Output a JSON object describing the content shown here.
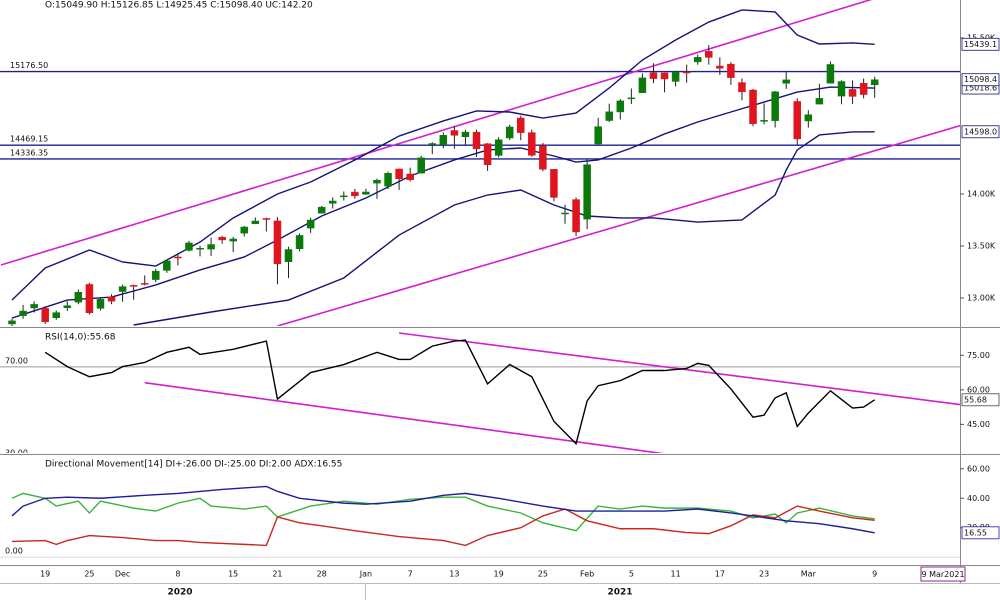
{
  "chart_data": [
    {
      "type": "candlestick",
      "title": "O:15049.90  H:15126.85  L:14925.45  C:15098.40  UC:142.20",
      "categories": [
        null,
        null,
        null,
        "19",
        null,
        null,
        null,
        "25",
        null,
        null,
        "Dec",
        null,
        null,
        null,
        null,
        "8",
        null,
        null,
        null,
        null,
        "15",
        null,
        null,
        null,
        "21",
        null,
        null,
        null,
        "28",
        null,
        null,
        null,
        "Jan",
        null,
        null,
        null,
        "7",
        null,
        null,
        null,
        "13",
        null,
        null,
        null,
        "19",
        null,
        null,
        null,
        "25",
        null,
        null,
        null,
        "Feb",
        null,
        null,
        null,
        "5",
        null,
        null,
        null,
        "11",
        null,
        null,
        null,
        "17",
        null,
        null,
        null,
        "23",
        null,
        null,
        null,
        "Mar",
        null,
        null,
        null,
        null,
        null,
        "9"
      ],
      "open": [
        12750,
        12830,
        12904,
        12900,
        12810,
        12906,
        12960,
        13130,
        12900,
        13010,
        13062,
        13121,
        13140,
        13177,
        13265,
        13394,
        13458,
        13473,
        13470,
        13584,
        13547,
        13623,
        13713,
        13764,
        13741,
        13348,
        13473,
        13672,
        13815,
        13910,
        13981,
        14018,
        13997,
        14104,
        14075,
        14240,
        14192,
        14200,
        14474,
        14473,
        14610,
        14550,
        14594,
        14483,
        14371,
        14538,
        14730,
        14590,
        14462,
        14237,
        13810,
        13946,
        13758,
        14481,
        14706,
        14789,
        14919,
        14973,
        15165,
        15164,
        15082,
        15174,
        15270,
        15371,
        15230,
        15248,
        15071,
        14999,
        14700,
        14705,
        15064,
        14889,
        14702,
        14864,
        15065,
        14941,
        15005,
        15064,
        15049.9
      ],
      "high": [
        12800,
        12934,
        12968,
        12920,
        12880,
        12968,
        13080,
        13145,
        13000,
        13036,
        13128,
        13128,
        13217,
        13280,
        13366,
        13430,
        13548,
        13503,
        13580,
        13597,
        13588,
        13692,
        13774,
        13772,
        13777,
        13492,
        13619,
        13771,
        13885,
        13967,
        14024,
        14049,
        14050,
        14148,
        14215,
        14244,
        14253,
        14367,
        14498,
        14591,
        14653,
        14617,
        14618,
        14489,
        14546,
        14666,
        14753,
        14619,
        14491,
        14237,
        13898,
        13966,
        14336,
        14731,
        14868,
        14913,
        15014,
        15159,
        15257,
        15168,
        15185,
        15244,
        15341,
        15432,
        15314,
        15268,
        15111,
        15010,
        14871,
        14990,
        15177,
        14920,
        14806,
        15058,
        15274,
        15093,
        15093,
        15111,
        15126.85
      ],
      "low": [
        12720,
        12800,
        12860,
        12750,
        12790,
        12875,
        12940,
        12840,
        12880,
        12940,
        12963,
        12983,
        13120,
        13152,
        13241,
        13311,
        13448,
        13400,
        13404,
        13521,
        13441,
        13590,
        13712,
        13639,
        13132,
        13192,
        13448,
        13626,
        13811,
        13860,
        13937,
        13953,
        13992,
        13953,
        14048,
        14039,
        14121,
        14200,
        14383,
        14439,
        14435,
        14471,
        14357,
        14222,
        14351,
        14517,
        14517,
        14357,
        14218,
        13929,
        13713,
        13596,
        13662,
        14469,
        14692,
        14715,
        14864,
        14973,
        15065,
        14977,
        15034,
        15069,
        15243,
        15243,
        15145,
        15049,
        14900,
        14652,
        14670,
        14639,
        15010,
        14468,
        14638,
        14864,
        15065,
        14863,
        14864,
        14919,
        14925.45
      ],
      "close": [
        12780,
        12874,
        12938,
        12771,
        12859,
        12926,
        13055,
        12858,
        12987,
        12969,
        13109,
        13113,
        13134,
        13258,
        13356,
        13393,
        13529,
        13478,
        13514,
        13558,
        13567,
        13682,
        13740,
        13761,
        13328,
        13466,
        13601,
        13749,
        13873,
        13932,
        13982,
        13982,
        14019,
        14132,
        14199,
        14146,
        14137,
        14347,
        14485,
        14564,
        14564,
        14595,
        14434,
        14281,
        14521,
        14644,
        14590,
        14372,
        14238,
        13967,
        13817,
        13635,
        14281,
        14647,
        14790,
        14895,
        14924,
        15116,
        15109,
        15106,
        15173,
        15163,
        15314,
        15313,
        15209,
        15119,
        14982,
        14676,
        14708,
        14982,
        15097,
        14529,
        14762,
        14919,
        15245,
        15081,
        14938,
        14956,
        15098.4
      ],
      "up_color": "#0b7a0b",
      "down_color": "#e0141e",
      "ylim": [
        12740,
        15865
      ],
      "yticks": [
        {
          "value": 15500,
          "label": "15.50K"
        },
        {
          "value": 14000,
          "label": "14.00K"
        },
        {
          "value": 13500,
          "label": "13.50K"
        },
        {
          "value": 13000,
          "label": "13.00K"
        }
      ],
      "levels": [
        {
          "value": 15176.5,
          "label": "15176.50"
        },
        {
          "value": 14469.15,
          "label": "14469.15"
        },
        {
          "value": 14336.35,
          "label": "14336.35"
        }
      ],
      "level_color": "#1e1e96",
      "series": [
        {
          "color": "#141478",
          "x": [
            0,
            3,
            7,
            10,
            13,
            17,
            20,
            24,
            27,
            31,
            35,
            39,
            42,
            45,
            48,
            51,
            54,
            57,
            60,
            63,
            66,
            69,
            71,
            73,
            76,
            78
          ],
          "values": [
            12980,
            13288,
            13461,
            13346,
            13307,
            13538,
            13769,
            14000,
            14115,
            14327,
            14557,
            14702,
            14798,
            14788,
            14730,
            14778,
            15019,
            15288,
            15480,
            15653,
            15769,
            15750,
            15528,
            15442,
            15452,
            15439.1
          ]
        },
        {
          "color": "#141478",
          "x": [
            0,
            5,
            9,
            13,
            17,
            21,
            24,
            28,
            32,
            36,
            40,
            43,
            46,
            49,
            51,
            53,
            56,
            59,
            62,
            65,
            68,
            71,
            74,
            78
          ],
          "values": [
            12807,
            12980,
            13009,
            13125,
            13269,
            13394,
            13557,
            13788,
            13961,
            14173,
            14327,
            14423,
            14442,
            14365,
            14307,
            14327,
            14442,
            14577,
            14692,
            14788,
            14884,
            14980,
            15028,
            15018.6
          ]
        },
        {
          "color": "#141478",
          "x": [
            11,
            18,
            25,
            30,
            35,
            40,
            43,
            46,
            49,
            52,
            55,
            58,
            62,
            66,
            69,
            70,
            71,
            73,
            76,
            78
          ],
          "values": [
            12740,
            12865,
            12980,
            13192,
            13605,
            13894,
            13990,
            14038,
            13894,
            13788,
            13769,
            13769,
            13730,
            13750,
            13990,
            14230,
            14423,
            14567,
            14596,
            14598.0
          ]
        }
      ],
      "channels": [
        {
          "x": [
            -1,
            78
          ],
          "values": [
            13317,
            15880
          ]
        },
        {
          "x": [
            24,
            89
          ],
          "values": [
            12730,
            14759
          ]
        }
      ],
      "channel_color": "#d21ed2",
      "tags": [
        {
          "value": 15439.1,
          "label": "15439.1"
        },
        {
          "value": 15018.6,
          "label": "15018.6"
        },
        {
          "value": 15098.4,
          "label": "15098.4"
        },
        {
          "value": 14598.0,
          "label": "14598.0"
        }
      ],
      "tag_color": "#141478"
    },
    {
      "type": "line",
      "title": "RSI(14,0):55.68",
      "ylim": [
        33,
        86
      ],
      "yticks": [
        {
          "value": 75,
          "label": "75.00"
        },
        {
          "value": 60,
          "label": "60.00"
        },
        {
          "value": 45,
          "label": "45.00"
        }
      ],
      "levels": [
        {
          "value": 70,
          "label": "70.00"
        },
        {
          "value": 30,
          "label": "30.00"
        }
      ],
      "level_color": "#9a9a9a",
      "series": [
        {
          "color": "#000000",
          "x": [
            3,
            5,
            7,
            9,
            10,
            12,
            14,
            16,
            17,
            20,
            23,
            24,
            27,
            30,
            33,
            35,
            36,
            38,
            40,
            41,
            43,
            45,
            47,
            49,
            51,
            52,
            53,
            55,
            57,
            59,
            61,
            62,
            63,
            65,
            67,
            68,
            69,
            70,
            71,
            72,
            74,
            76,
            77,
            78
          ],
          "values": [
            76.3,
            70.1,
            65.7,
            67.5,
            70.1,
            71.9,
            76.3,
            78.5,
            75.4,
            77.6,
            81.2,
            56.0,
            67.5,
            71.0,
            76.3,
            73.2,
            73.2,
            79.0,
            81.2,
            81.6,
            62.6,
            71.0,
            65.7,
            46.3,
            36.6,
            55.2,
            61.8,
            64.0,
            68.4,
            68.4,
            69.3,
            71.5,
            70.6,
            60.4,
            48.1,
            49.0,
            56.5,
            58.7,
            44.1,
            49.9,
            59.6,
            52.1,
            52.5,
            55.68
          ]
        }
      ],
      "channels": [
        {
          "x": [
            35,
            89
          ],
          "values": [
            84.7,
            51.6
          ]
        },
        {
          "x": [
            12,
            59
          ],
          "values": [
            63.1,
            32.2
          ]
        }
      ],
      "channel_color": "#d21ed2",
      "tags": [
        55.68
      ],
      "tag_color": "#444444"
    },
    {
      "type": "line",
      "title": "Directional Movement[14]  DI+:26.00 DI-:25.00 DI:2.00 ADX:16.55",
      "ylim": [
        -5.3,
        68
      ],
      "yticks": [
        {
          "value": 60,
          "label": "60.00"
        },
        {
          "value": 40,
          "label": "40.00"
        },
        {
          "value": 20,
          "label": "20.00"
        }
      ],
      "levels": [
        {
          "value": 0,
          "label": "0.00"
        }
      ],
      "level_color": "#dddddd",
      "series": [
        {
          "color": "#3cb43c",
          "x": [
            0,
            1,
            3,
            4,
            6,
            7,
            8,
            11,
            13,
            15,
            17,
            18,
            21,
            23,
            24,
            27,
            30,
            33,
            36,
            39,
            41,
            43,
            46,
            48,
            51,
            53,
            55,
            57,
            59,
            62,
            65,
            67,
            69,
            70,
            71,
            73,
            76,
            78
          ],
          "values": [
            40,
            43.3,
            40,
            34.7,
            38,
            30,
            38,
            33.3,
            31.3,
            36.7,
            40,
            34.7,
            32.7,
            34.7,
            27.3,
            34.7,
            38,
            36,
            39.3,
            40.7,
            40.7,
            34.7,
            30,
            23.3,
            18,
            34.7,
            32.7,
            34.7,
            33.3,
            33.3,
            31.3,
            26.7,
            29.3,
            23.3,
            30,
            33.3,
            28,
            26
          ]
        },
        {
          "color": "#c8281e",
          "x": [
            0,
            3,
            4,
            5,
            7,
            10,
            13,
            15,
            17,
            21,
            23,
            24,
            26,
            28,
            31,
            35,
            39,
            41,
            43,
            46,
            48,
            50,
            52,
            55,
            58,
            61,
            63,
            65,
            67,
            69,
            71,
            73,
            76,
            78
          ],
          "values": [
            10.7,
            11.3,
            8.7,
            11.3,
            14.7,
            13.3,
            11.3,
            11.3,
            10,
            8.7,
            8,
            27.3,
            23.3,
            21.3,
            18,
            14,
            11.3,
            8,
            14.7,
            20,
            28,
            32.7,
            24.7,
            19.3,
            19.3,
            16.7,
            16,
            21.3,
            28.7,
            26.7,
            34.7,
            31.3,
            26.7,
            25
          ]
        },
        {
          "color": "#1e1e9b",
          "x": [
            0,
            1,
            3,
            5,
            8,
            12,
            15,
            19,
            23,
            24,
            26,
            30,
            32,
            36,
            39,
            41,
            44,
            48,
            51,
            54,
            59,
            62,
            65,
            67,
            70,
            73,
            76,
            78
          ],
          "values": [
            28,
            34.7,
            40,
            40.7,
            40,
            42,
            43.3,
            46,
            48,
            44.7,
            40,
            36.7,
            36,
            38,
            42,
            43.3,
            40,
            34.7,
            31.3,
            31.3,
            31.3,
            32.7,
            30,
            28,
            24.7,
            22.7,
            19.3,
            16.55
          ]
        }
      ],
      "channels": [],
      "channel_color": "#d21ed2",
      "tags": [
        16.55
      ],
      "tag_color": "#1e1e9b"
    }
  ],
  "x_axis": {
    "years": [
      "2020",
      "2021"
    ],
    "end_date": "9 Mar2021"
  }
}
